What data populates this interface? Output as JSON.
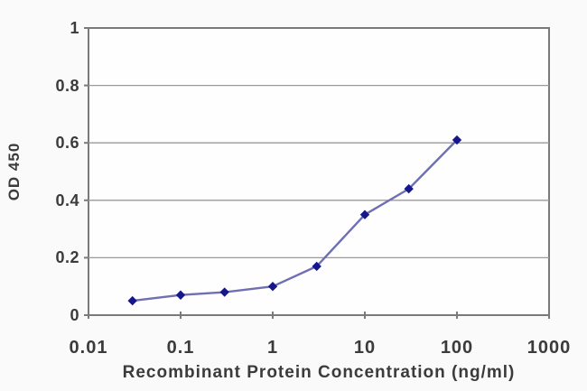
{
  "chart_data": {
    "type": "line",
    "title": "",
    "xlabel": "Recombinant Protein Concentration (ng/ml)",
    "ylabel": "OD 450",
    "x_scale": "log",
    "y_scale": "linear",
    "xlim": [
      0.01,
      1000
    ],
    "ylim": [
      0,
      1
    ],
    "x_tick_values": [
      0.01,
      0.1,
      1,
      10,
      100,
      1000
    ],
    "x_tick_labels": [
      "0.01",
      "0.1",
      "1",
      "10",
      "100",
      "1000"
    ],
    "y_tick_values": [
      0,
      0.2,
      0.4,
      0.6,
      0.8,
      1
    ],
    "y_tick_labels": [
      "0",
      "0.2",
      "0.4",
      "0.6",
      "0.8",
      "1"
    ],
    "grid": "horizontal",
    "legend": "none",
    "marker": "diamond",
    "series": [
      {
        "name": "OD 450",
        "x": [
          0.03,
          0.1,
          0.3,
          1,
          3,
          10,
          30,
          100
        ],
        "y": [
          0.05,
          0.07,
          0.08,
          0.1,
          0.17,
          0.35,
          0.44,
          0.61
        ]
      }
    ],
    "colors": {
      "line": "#6f6fb4",
      "marker": "#17178c",
      "grid": "#9a9a9a",
      "axis_border": "#7a7a7a",
      "text": "#3b3b3b",
      "plot_bg": "#fefefe",
      "outer_bg": "#fafafa"
    }
  }
}
